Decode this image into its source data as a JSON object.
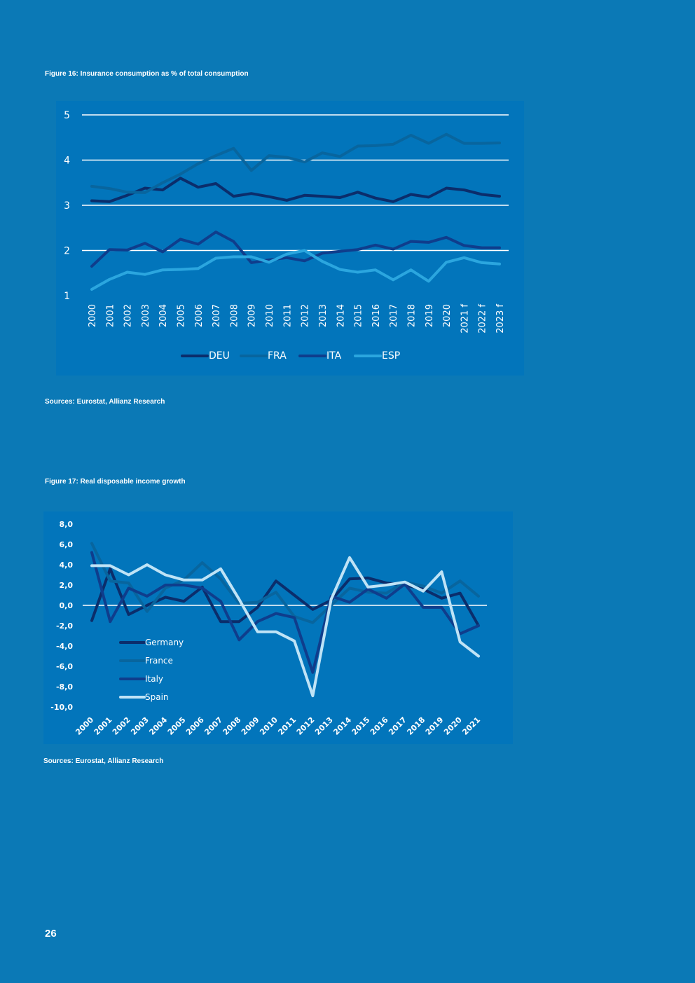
{
  "figure16": {
    "title": "Figure 16: Insurance consumption as % of total consumption",
    "source": "Sources: Eurostat, Allianz Research"
  },
  "figure17": {
    "title": "Figure 17: Real disposable income growth",
    "source": "Sources: Eurostat, Allianz Research"
  },
  "page_number": "26",
  "colors": {
    "page_background": "#0b79b6",
    "chart_background": "#0275bb",
    "gridline": "#ffffff",
    "text": "#ffffff"
  },
  "chart_data": [
    {
      "type": "line",
      "title": "Figure 16: Insurance consumption as % of total consumption",
      "xlabel": "",
      "ylabel": "",
      "ylim": [
        1,
        5
      ],
      "yticks": [
        "1",
        "2",
        "3",
        "4",
        "5"
      ],
      "grid": true,
      "legend_position": "bottom",
      "categories": [
        "2000",
        "2001",
        "2002",
        "2003",
        "2004",
        "2005",
        "2006",
        "2007",
        "2008",
        "2009",
        "2010",
        "2011",
        "2012",
        "2013",
        "2014",
        "2015",
        "2016",
        "2017",
        "2018",
        "2019",
        "2020",
        "2021 f",
        "2022 f",
        "2023 f"
      ],
      "series": [
        {
          "name": "DEU",
          "color": "#0b2d6b",
          "values": [
            3.1,
            3.08,
            3.22,
            3.38,
            3.34,
            3.6,
            3.4,
            3.48,
            3.2,
            3.26,
            3.19,
            3.11,
            3.22,
            3.2,
            3.17,
            3.29,
            3.16,
            3.08,
            3.24,
            3.18,
            3.38,
            3.34,
            3.24,
            3.2
          ]
        },
        {
          "name": "FRA",
          "color": "#08659e",
          "values": [
            3.42,
            3.37,
            3.29,
            3.28,
            3.5,
            3.69,
            3.92,
            4.1,
            4.26,
            3.77,
            4.1,
            4.06,
            3.96,
            4.16,
            4.08,
            4.31,
            4.32,
            4.35,
            4.55,
            4.37,
            4.57,
            4.37,
            4.37,
            4.38
          ]
        },
        {
          "name": "ITA",
          "color": "#0f3d8c",
          "values": [
            1.65,
            2.02,
            2.01,
            2.16,
            1.97,
            2.25,
            2.14,
            2.41,
            2.2,
            1.73,
            1.79,
            1.84,
            1.77,
            1.94,
            1.98,
            2.02,
            2.12,
            2.03,
            2.2,
            2.18,
            2.29,
            2.11,
            2.06,
            2.06
          ]
        },
        {
          "name": "ESP",
          "color": "#2ba6df",
          "values": [
            1.14,
            1.36,
            1.52,
            1.47,
            1.57,
            1.58,
            1.6,
            1.83,
            1.86,
            1.86,
            1.74,
            1.92,
            2.0,
            1.76,
            1.58,
            1.52,
            1.57,
            1.35,
            1.57,
            1.32,
            1.74,
            1.84,
            1.73,
            1.7
          ]
        }
      ]
    },
    {
      "type": "line",
      "title": "Figure 17: Real disposable income growth",
      "xlabel": "",
      "ylabel": "",
      "ylim": [
        -10,
        8
      ],
      "yticks": [
        "8,0",
        "6,0",
        "4,0",
        "2,0",
        "0,0",
        "-2,0",
        "-4,0",
        "-6,0",
        "-8,0",
        "-10,0"
      ],
      "grid": false,
      "zero_line": true,
      "legend_position": "lower-left inside",
      "categories": [
        "2000",
        "2001",
        "2002",
        "2003",
        "2004",
        "2005",
        "2006",
        "2007",
        "2008",
        "2009",
        "2010",
        "2011",
        "2012",
        "2013",
        "2014",
        "2015",
        "2016",
        "2017",
        "2018",
        "2019",
        "2020",
        "2021"
      ],
      "series": [
        {
          "name": "Germany",
          "color": "#0b2d6b",
          "values": [
            -1.5,
            3.6,
            -0.9,
            0.0,
            0.8,
            0.4,
            1.8,
            -1.6,
            -1.6,
            -0.2,
            2.4,
            1.0,
            -0.4,
            0.5,
            2.6,
            2.7,
            2.2,
            2.0,
            1.6,
            0.7,
            1.2,
            -2.0
          ]
        },
        {
          "name": "France",
          "color": "#08659e",
          "values": [
            6.1,
            2.4,
            2.2,
            -0.6,
            1.7,
            2.5,
            4.2,
            2.6,
            0.2,
            0.3,
            1.3,
            -1.1,
            -1.7,
            0.0,
            1.7,
            1.3,
            1.2,
            2.3,
            1.9,
            1.2,
            2.4,
            0.9
          ]
        },
        {
          "name": "Italy",
          "color": "#0f3d8c",
          "values": [
            5.2,
            -1.6,
            1.7,
            0.9,
            2.0,
            2.0,
            1.7,
            0.4,
            -3.4,
            -1.6,
            -0.8,
            -1.2,
            -6.6,
            0.9,
            0.3,
            1.6,
            0.7,
            2.1,
            -0.2,
            -0.2,
            -2.8,
            -2.0
          ]
        },
        {
          "name": "Spain",
          "color": "#bfe3f6",
          "values": [
            3.9,
            3.9,
            3.0,
            4.0,
            3.0,
            2.5,
            2.5,
            3.6,
            0.6,
            -2.6,
            -2.6,
            -3.5,
            -8.9,
            0.6,
            4.7,
            1.8,
            2.0,
            2.3,
            1.4,
            3.3,
            -3.6,
            -5.0
          ]
        }
      ]
    }
  ]
}
